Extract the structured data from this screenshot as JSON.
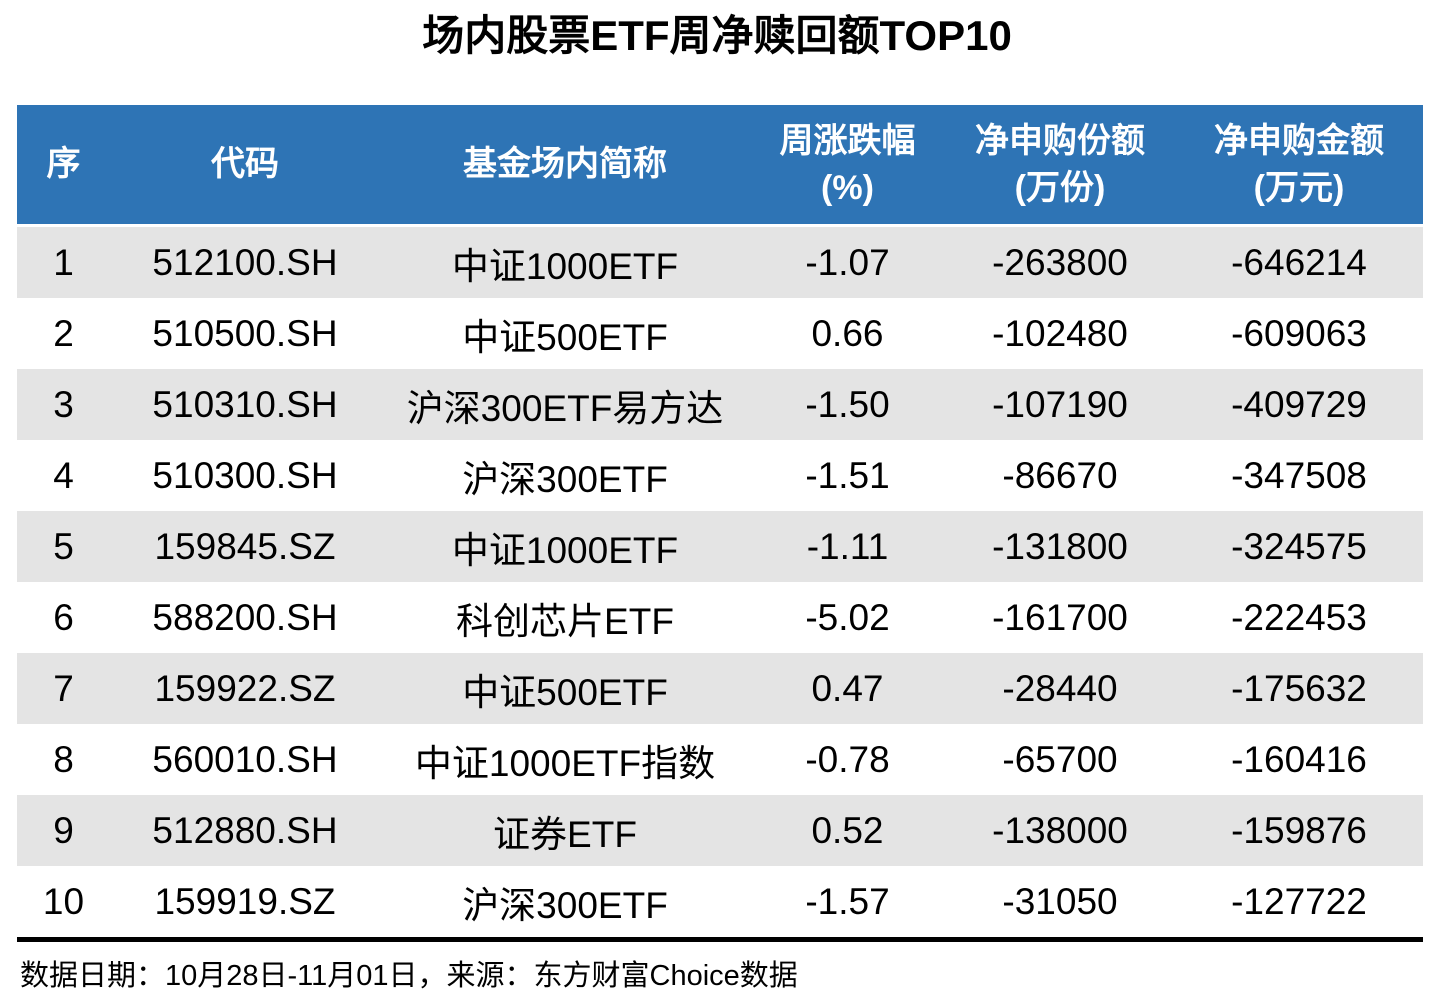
{
  "title": "场内股票ETF周净赎回额TOP10",
  "colors": {
    "header_bg": "#2E74B5",
    "header_text": "#FFFFFF",
    "stripe_bg": "#E4E4E4"
  },
  "table": {
    "columns": [
      {
        "label": "序",
        "unit": ""
      },
      {
        "label": "代码",
        "unit": ""
      },
      {
        "label": "基金场内简称",
        "unit": ""
      },
      {
        "label": "周涨跌幅",
        "unit": "(%)"
      },
      {
        "label": "净申购份额",
        "unit": "(万份)"
      },
      {
        "label": "净申购金额",
        "unit": "(万元)"
      }
    ],
    "rows": [
      {
        "rank": "1",
        "code": "512100.SH",
        "name": "中证1000ETF",
        "chg": "-1.07",
        "shares": "-263800",
        "amount": "-646214"
      },
      {
        "rank": "2",
        "code": "510500.SH",
        "name": "中证500ETF",
        "chg": "0.66",
        "shares": "-102480",
        "amount": "-609063"
      },
      {
        "rank": "3",
        "code": "510310.SH",
        "name": "沪深300ETF易方达",
        "chg": "-1.50",
        "shares": "-107190",
        "amount": "-409729"
      },
      {
        "rank": "4",
        "code": "510300.SH",
        "name": "沪深300ETF",
        "chg": "-1.51",
        "shares": "-86670",
        "amount": "-347508"
      },
      {
        "rank": "5",
        "code": "159845.SZ",
        "name": "中证1000ETF",
        "chg": "-1.11",
        "shares": "-131800",
        "amount": "-324575"
      },
      {
        "rank": "6",
        "code": "588200.SH",
        "name": "科创芯片ETF",
        "chg": "-5.02",
        "shares": "-161700",
        "amount": "-222453"
      },
      {
        "rank": "7",
        "code": "159922.SZ",
        "name": "中证500ETF",
        "chg": "0.47",
        "shares": "-28440",
        "amount": "-175632"
      },
      {
        "rank": "8",
        "code": "560010.SH",
        "name": "中证1000ETF指数",
        "chg": "-0.78",
        "shares": "-65700",
        "amount": "-160416"
      },
      {
        "rank": "9",
        "code": "512880.SH",
        "name": "证券ETF",
        "chg": "0.52",
        "shares": "-138000",
        "amount": "-159876"
      },
      {
        "rank": "10",
        "code": "159919.SZ",
        "name": "沪深300ETF",
        "chg": "-1.57",
        "shares": "-31050",
        "amount": "-127722"
      }
    ]
  },
  "footer": {
    "text": "数据日期：10月28日-11月01日，来源：东方财富Choice数据"
  },
  "chart_data": {
    "type": "table",
    "title": "场内股票ETF周净赎回额TOP10",
    "columns": [
      "序",
      "代码",
      "基金场内简称",
      "周涨跌幅(%)",
      "净申购份额(万份)",
      "净申购金额(万元)"
    ],
    "rows": [
      [
        1,
        "512100.SH",
        "中证1000ETF",
        -1.07,
        -263800,
        -646214
      ],
      [
        2,
        "510500.SH",
        "中证500ETF",
        0.66,
        -102480,
        -609063
      ],
      [
        3,
        "510310.SH",
        "沪深300ETF易方达",
        -1.5,
        -107190,
        -409729
      ],
      [
        4,
        "510300.SH",
        "沪深300ETF",
        -1.51,
        -86670,
        -347508
      ],
      [
        5,
        "159845.SZ",
        "中证1000ETF",
        -1.11,
        -131800,
        -324575
      ],
      [
        6,
        "588200.SH",
        "科创芯片ETF",
        -5.02,
        -161700,
        -222453
      ],
      [
        7,
        "159922.SZ",
        "中证500ETF",
        0.47,
        -28440,
        -175632
      ],
      [
        8,
        "560010.SH",
        "中证1000ETF指数",
        -0.78,
        -65700,
        -160416
      ],
      [
        9,
        "512880.SH",
        "证券ETF",
        0.52,
        -138000,
        -159876
      ],
      [
        10,
        "159919.SZ",
        "沪深300ETF",
        -1.57,
        -31050,
        -127722
      ]
    ],
    "source_note": "数据日期：10月28日-11月01日，来源：东方财富Choice数据"
  }
}
